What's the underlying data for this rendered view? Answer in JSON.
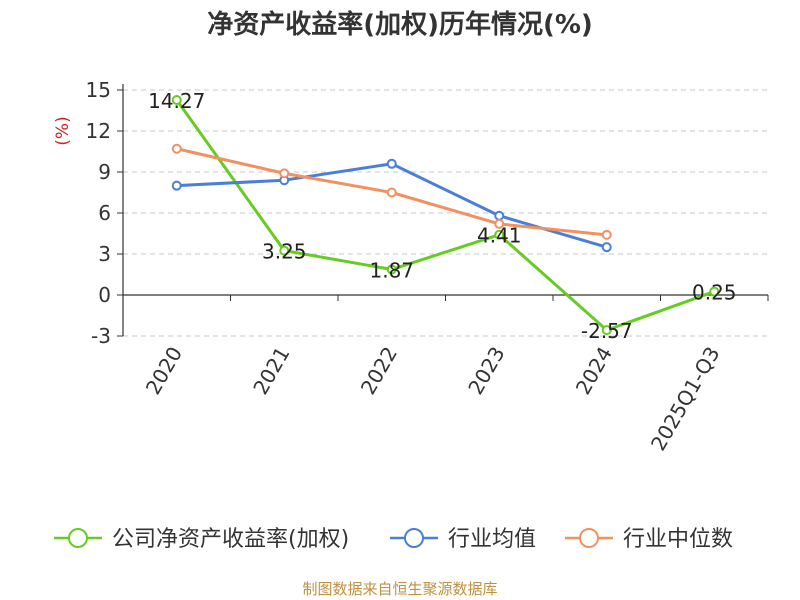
{
  "chart_data": {
    "type": "line",
    "title": "净资产收益率(加权)历年情况(%)",
    "ylabel": "(%)",
    "xlabel": "",
    "categories": [
      "2020",
      "2021",
      "2022",
      "2023",
      "2024",
      "2025Q1-Q3"
    ],
    "ylim": [
      -3,
      15
    ],
    "yticks": [
      15,
      12,
      9,
      6,
      3,
      0,
      -3
    ],
    "grid": true,
    "legend_position": "bottom",
    "series": [
      {
        "name": "公司净资产收益率(加权)",
        "color": "#66cc22",
        "values": [
          14.27,
          3.25,
          1.87,
          4.41,
          -2.57,
          0.25
        ],
        "labels": [
          "14.27",
          "3.25",
          "1.87",
          "4.41",
          "-2.57",
          "0.25"
        ]
      },
      {
        "name": "行业均值",
        "color": "#4a7fd8",
        "values": [
          8.0,
          8.4,
          9.6,
          5.8,
          3.5,
          null
        ]
      },
      {
        "name": "行业中位数",
        "color": "#f39060",
        "values": [
          10.7,
          8.9,
          7.5,
          5.2,
          4.4,
          null
        ]
      }
    ]
  },
  "source": "制图数据来自恒生聚源数据库"
}
